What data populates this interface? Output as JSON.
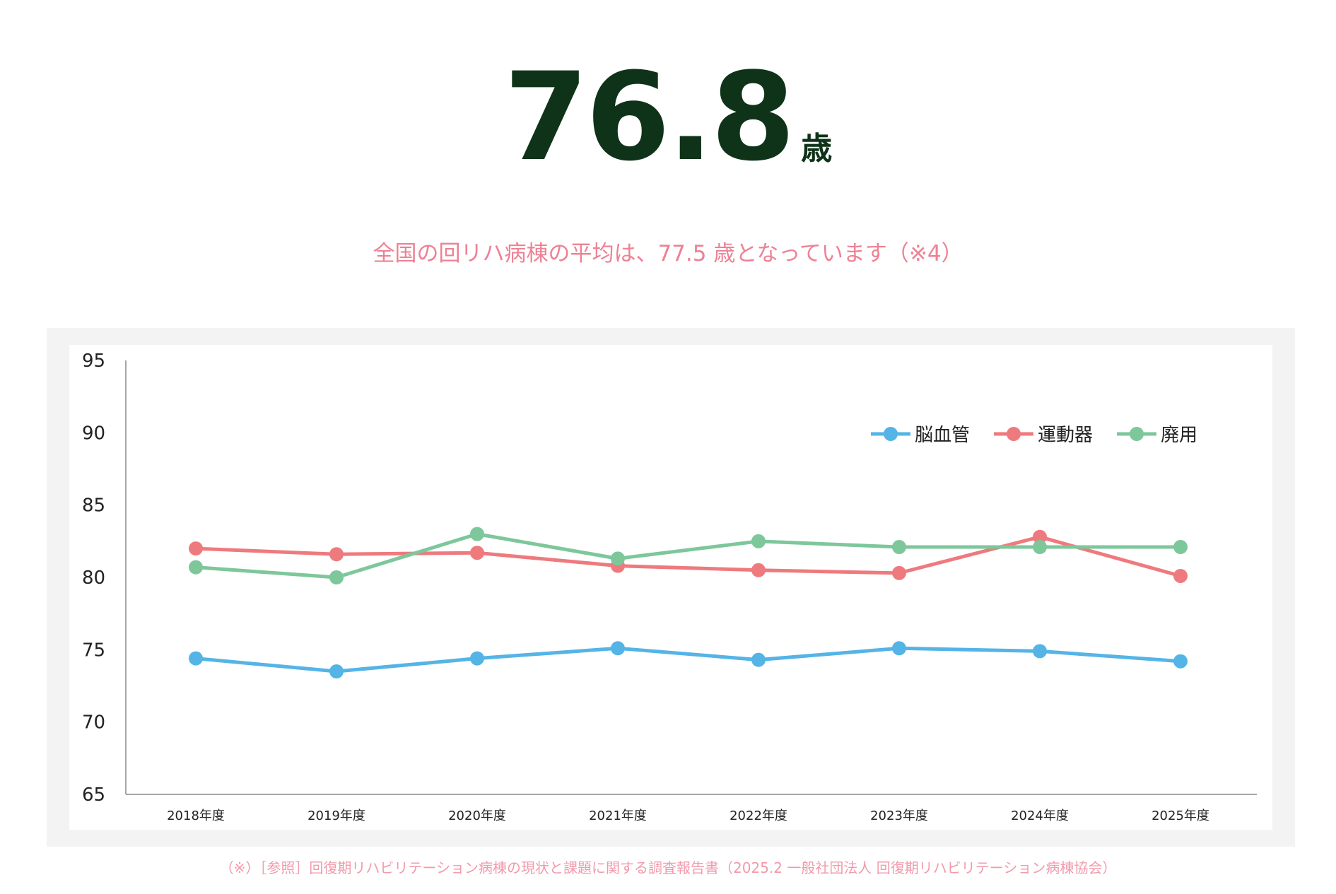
{
  "hero": {
    "value": "76.8",
    "unit": "歳"
  },
  "note": "全国の回リハ病棟の平均は、77.5 歳となっています（※4）",
  "source": "（※）［参照］回復期リハビリテーション病棟の現状と課題に関する調査報告書（2025.2 一般社団法人 回復期リハビリテーション病棟協会）",
  "chart_data": {
    "type": "line",
    "categories": [
      "2018年度",
      "2019年度",
      "2020年度",
      "2021年度",
      "2022年度",
      "2023年度",
      "2024年度",
      "2025年度"
    ],
    "ylim": [
      65,
      95
    ],
    "yticks": [
      "65",
      "70",
      "75",
      "80",
      "85",
      "90",
      "95"
    ],
    "legend_position": "top-right",
    "grid": false,
    "series": [
      {
        "name": "脳血管",
        "color": "#55b4e6",
        "values": [
          74.4,
          73.5,
          74.4,
          75.1,
          74.3,
          75.1,
          74.9,
          74.2
        ]
      },
      {
        "name": "運動器",
        "color": "#ee7a7e",
        "values": [
          82.0,
          81.6,
          81.7,
          80.8,
          80.5,
          80.3,
          82.8,
          80.1
        ]
      },
      {
        "name": "廃用",
        "color": "#7dc79b",
        "values": [
          80.7,
          80.0,
          83.0,
          81.3,
          82.5,
          82.1,
          82.1,
          82.1
        ]
      }
    ]
  }
}
